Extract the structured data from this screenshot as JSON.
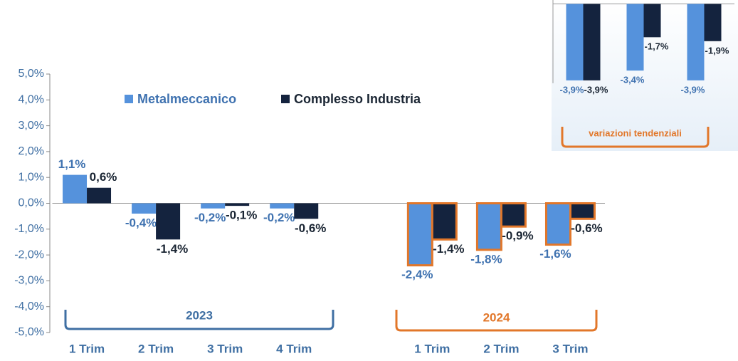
{
  "chart_data": [
    {
      "type": "bar",
      "categories": [
        "1 Trim",
        "2 Trim",
        "3 Trim",
        "4 Trim",
        null,
        "1 Trim",
        "2 Trim",
        "3 Trim"
      ],
      "series": [
        {
          "name": "Metalmeccanico",
          "color": "#5592dc",
          "label_color": "#3f72b0",
          "values": [
            1.1,
            -0.4,
            -0.2,
            -0.2,
            null,
            -2.4,
            -1.8,
            -1.6
          ],
          "value_labels": [
            "1,1%",
            "-0,4%",
            "-0,2%",
            "-0,2%",
            null,
            "-2,4%",
            "-1,8%",
            "-1,6%"
          ]
        },
        {
          "name": "Complesso Industria",
          "color": "#14233e",
          "label_color": "#1a2533",
          "values": [
            0.6,
            -1.4,
            -0.1,
            -0.6,
            null,
            -1.4,
            -0.9,
            -0.6
          ],
          "value_labels": [
            "0,6%",
            "-1,4%",
            "-0,1%",
            "-0,6%",
            null,
            "-1,4%",
            "-0,9%",
            "-0,6%"
          ]
        }
      ],
      "ylim": [
        -5,
        5
      ],
      "yticks": [
        {
          "value": 5,
          "label": "5,0%"
        },
        {
          "value": 4,
          "label": "4,0%"
        },
        {
          "value": 3,
          "label": "3,0%"
        },
        {
          "value": 2,
          "label": "2,0%"
        },
        {
          "value": 1,
          "label": "1,0%"
        },
        {
          "value": 0,
          "label": "0,0%"
        },
        {
          "value": -1,
          "label": "-1,0%"
        },
        {
          "value": -2,
          "label": "-2,0%"
        },
        {
          "value": -3,
          "label": "-3,0%"
        },
        {
          "value": -4,
          "label": "-4,0%"
        },
        {
          "value": -5,
          "label": "-5,0%"
        }
      ],
      "legend": "top",
      "annotations": [
        "2023",
        "2024"
      ],
      "annotation_colors": [
        "#3f6fa3",
        "#e2772a"
      ],
      "highlight_color": "#e2772a"
    },
    {
      "type": "bar",
      "categories": [
        null,
        null,
        null
      ],
      "series": [
        {
          "color": "#5592dc",
          "label_color": "#3f72b0",
          "values": [
            -3.9,
            -3.4,
            -3.9
          ],
          "value_labels": [
            "-3,9%",
            "-3,4%",
            "-3,9%"
          ]
        },
        {
          "color": "#14233e",
          "label_color": "#1a2533",
          "values": [
            -3.9,
            -1.7,
            -1.9
          ],
          "value_labels": [
            "-3,9%",
            "-1,7%",
            "-1,9%"
          ]
        }
      ],
      "ylim": [
        -7.5,
        0.2
      ],
      "annotations": [
        "variazioni tendenziali"
      ],
      "annotation_colors": [
        "#e2772a"
      ]
    }
  ]
}
